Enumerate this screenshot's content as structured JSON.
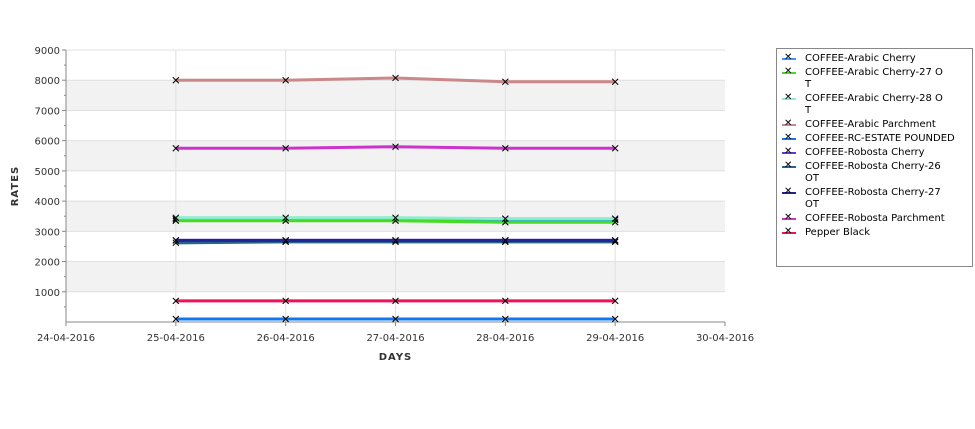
{
  "chart_data": {
    "type": "line",
    "title": "",
    "xlabel": "DAYS",
    "ylabel": "RATES",
    "ylim": [
      0,
      9000
    ],
    "yticks": [
      "1000",
      "2000",
      "3000",
      "4000",
      "5000",
      "6000",
      "7000",
      "8000",
      "9000"
    ],
    "xticks": [
      "24-04-2016",
      "25-04-2016",
      "26-04-2016",
      "27-04-2016",
      "28-04-2016",
      "29-04-2016",
      "30-04-2016"
    ],
    "x": [
      "25-04-2016",
      "26-04-2016",
      "27-04-2016",
      "28-04-2016",
      "29-04-2016"
    ],
    "legend_position": "right",
    "series": [
      {
        "name": "COFFEE-Arabic Cherry",
        "color": "#3399ff",
        "values": [
          3400,
          3400,
          3400,
          3380,
          3380
        ]
      },
      {
        "name": "COFFEE-Arabic Cherry-27 O\nT",
        "color": "#44dd22",
        "values": [
          3350,
          3350,
          3350,
          3300,
          3300
        ]
      },
      {
        "name": "COFFEE-Arabic Cherry-28 O\nT",
        "color": "#88eecc",
        "values": [
          3450,
          3450,
          3450,
          3420,
          3420
        ]
      },
      {
        "name": "COFFEE-Arabic Parchment",
        "color": "#cc8888",
        "values": [
          8000,
          8000,
          8075,
          7950,
          7950
        ]
      },
      {
        "name": "COFFEE-RC-ESTATE POUNDED",
        "color": "#1177ee",
        "values": [
          100,
          100,
          100,
          100,
          100
        ]
      },
      {
        "name": "COFFEE-Robosta Cherry",
        "color": "#6633dd",
        "values": [
          2700,
          2700,
          2700,
          2700,
          2700
        ]
      },
      {
        "name": "COFFEE-Robosta Cherry-26\nOT",
        "color": "#226688",
        "values": [
          2620,
          2650,
          2650,
          2650,
          2650
        ]
      },
      {
        "name": "COFFEE-Robosta Cherry-27\nOT",
        "color": "#222299",
        "values": [
          2700,
          2700,
          2700,
          2700,
          2700
        ]
      },
      {
        "name": "COFFEE-Robosta Parchment",
        "color": "#cc33cc",
        "values": [
          5750,
          5750,
          5800,
          5750,
          5750
        ]
      },
      {
        "name": "Pepper Black",
        "color": "#ee1155",
        "values": [
          700,
          700,
          700,
          700,
          700
        ]
      }
    ]
  }
}
